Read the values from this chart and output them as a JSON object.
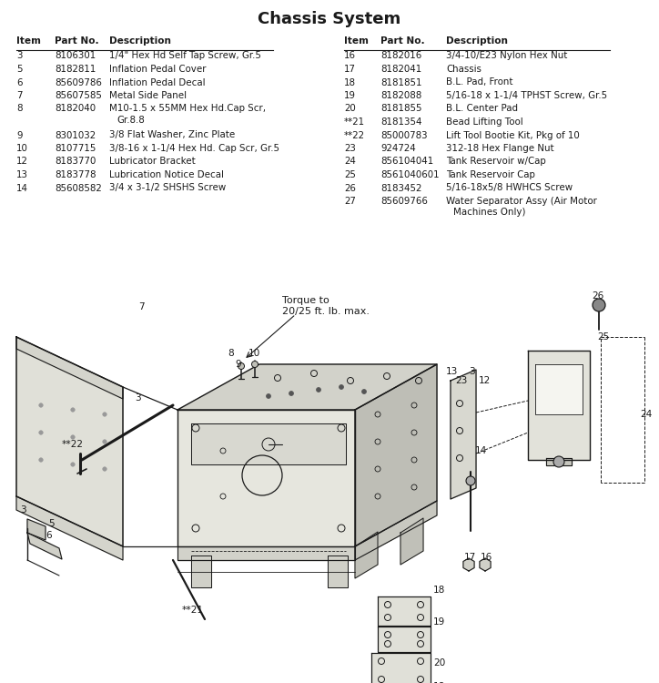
{
  "title": "Chassis System",
  "bg_color": "#ffffff",
  "left_table": {
    "headers": [
      "Item",
      "Part No.",
      "Description"
    ],
    "rows": [
      [
        "3",
        "8106301",
        "1/4\" Hex Hd Self Tap Screw, Gr.5"
      ],
      [
        "5",
        "8182811",
        "Inflation Pedal Cover"
      ],
      [
        "6",
        "85609786",
        "Inflation Pedal Decal"
      ],
      [
        "7",
        "85607585",
        "Metal Side Panel"
      ],
      [
        "8",
        "8182040",
        "M10-1.5 x 55MM Hex Hd.Cap Scr,\nGr.8.8"
      ],
      [
        "9",
        "8301032",
        "3/8 Flat Washer, Zinc Plate"
      ],
      [
        "10",
        "8107715",
        "3/8-16 x 1-1/4 Hex Hd. Cap Scr, Gr.5"
      ],
      [
        "12",
        "8183770",
        "Lubricator Bracket"
      ],
      [
        "13",
        "8183778",
        "Lubrication Notice Decal"
      ],
      [
        "14",
        "85608582",
        "3/4 x 3-1/2 SHSHS Screw"
      ]
    ]
  },
  "right_table": {
    "headers": [
      "Item",
      "Part No.",
      "Description"
    ],
    "rows": [
      [
        "16",
        "8182016",
        "3/4-10/E23 Nylon Hex Nut"
      ],
      [
        "17",
        "8182041",
        "Chassis"
      ],
      [
        "18",
        "8181851",
        "B.L. Pad, Front"
      ],
      [
        "19",
        "8182088",
        "5/16-18 x 1-1/4 TPHST Screw, Gr.5"
      ],
      [
        "20",
        "8181855",
        "B.L. Center Pad"
      ],
      [
        "**21",
        "8181354",
        "Bead Lifting Tool"
      ],
      [
        "**22",
        "85000783",
        "Lift Tool Bootie Kit, Pkg of 10"
      ],
      [
        "23",
        "924724",
        "312-18 Hex Flange Nut"
      ],
      [
        "24",
        "856104041",
        "Tank Reservoir w/Cap"
      ],
      [
        "25",
        "8561040601",
        "Tank Reservoir Cap"
      ],
      [
        "26",
        "8183452",
        "5/16-18x5/8 HWHCS Screw"
      ],
      [
        "27",
        "85609766",
        "Water Separator Assy (Air Motor\nMachines Only)"
      ]
    ]
  }
}
